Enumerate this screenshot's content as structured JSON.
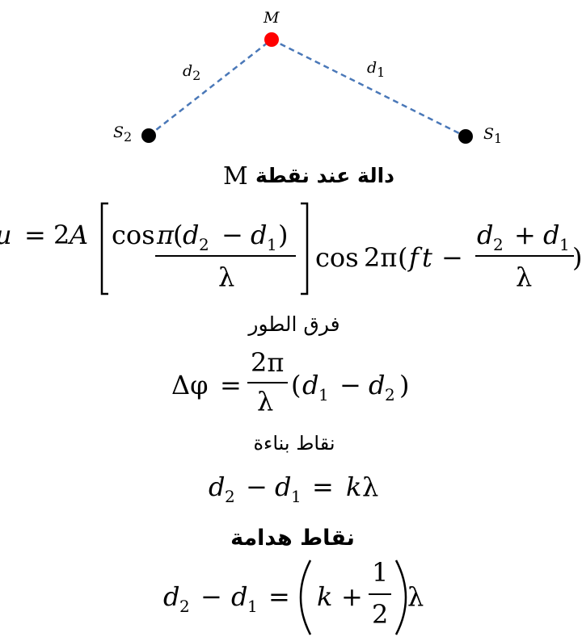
{
  "labels": {
    "M": "M",
    "d2": "d",
    "d2_sub": "2",
    "d1": "d",
    "d1_sub": "1",
    "S2": "S",
    "S2_sub": "2",
    "S1": "S",
    "S1_sub": "1"
  },
  "headings": {
    "function_at_point": "دالة عند نقطة",
    "function_point_letter": "M",
    "phase_difference": "فرق الطور",
    "constructive_points": "نقاط بناءة",
    "destructive_points": "نقاط هدامة"
  },
  "equations": {
    "u": "u",
    "eq": "=",
    "two": "2",
    "A": "A",
    "cos": "cos",
    "pi": "π",
    "lambda": "λ",
    "minus": "−",
    "plus": "+",
    "d": "d",
    "sub1": "1",
    "sub2": "2",
    "two_pi": "2π",
    "f": "f",
    "t": "t",
    "delta_phi": "Δφ",
    "k": "k",
    "one": "1"
  },
  "colors": {
    "point_M": "#ff0000",
    "sources": "#000000",
    "path_line": "#4a78b8"
  }
}
